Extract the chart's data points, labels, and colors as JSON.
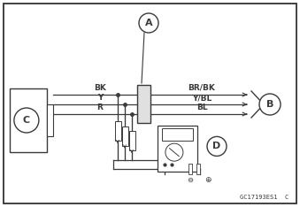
{
  "bg_color": "#ffffff",
  "line_color": "#3a3a3a",
  "border_color": "#333333",
  "fig_width": 3.39,
  "fig_height": 2.34,
  "watermark": "GC17193ES1  C",
  "label_A": "A",
  "label_B": "B",
  "label_C": "C",
  "label_D": "D",
  "wire_labels_left": [
    "BK",
    "Y",
    "R"
  ],
  "wire_labels_right": [
    "BR/BK",
    "Y/BL",
    "BL"
  ]
}
